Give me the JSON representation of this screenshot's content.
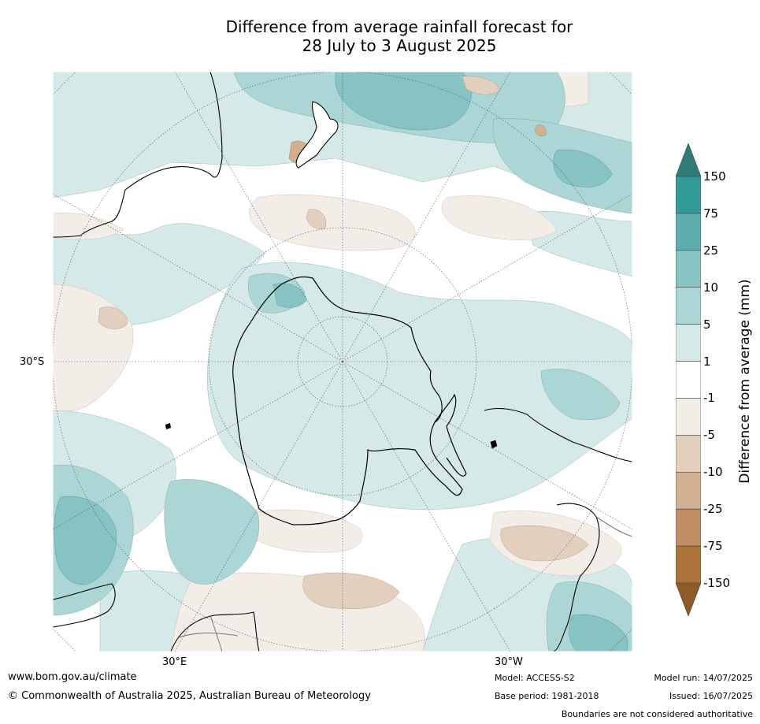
{
  "title": {
    "line1": "Difference from average rainfall forecast for",
    "line2": "28 July to 3 August 2025"
  },
  "map": {
    "projection": "south-polar-stereographic",
    "labels": {
      "lat": "30°S",
      "lon_east": "30°E",
      "lon_west": "30°W"
    },
    "colors": {
      "land_outline": "#000000",
      "boundaries": "#777777",
      "graticule": "#555555"
    }
  },
  "colorbar": {
    "label": "Difference from average (mm)",
    "ticks": [
      "150",
      "75",
      "25",
      "10",
      "5",
      "1",
      "-1",
      "-5",
      "-10",
      "-25",
      "-75",
      "-150"
    ],
    "bins": [
      {
        "color": "#2f7c77",
        "range": "> 150",
        "type": "extend-top"
      },
      {
        "color": "#339b98",
        "range": "75 to 150"
      },
      {
        "color": "#5eaead",
        "range": "25 to 75"
      },
      {
        "color": "#87c3c2",
        "range": "10 to 25"
      },
      {
        "color": "#acd6d5",
        "range": "5 to 10"
      },
      {
        "color": "#d5e9e8",
        "range": "1 to 5"
      },
      {
        "color": "#ffffff",
        "range": "-1 to 1"
      },
      {
        "color": "#f3ede8",
        "range": "-5 to -1"
      },
      {
        "color": "#e3cfbd",
        "range": "-10 to -5"
      },
      {
        "color": "#d1b091",
        "range": "-25 to -10"
      },
      {
        "color": "#bf8f63",
        "range": "-75 to -25"
      },
      {
        "color": "#ac733b",
        "range": "-150 to -75"
      },
      {
        "color": "#8e5a26",
        "range": "< -150",
        "type": "extend-bottom"
      }
    ]
  },
  "footer": {
    "url": "www.bom.gov.au/climate",
    "copyright": "© Commonwealth of Australia 2025, Australian Bureau of Meteorology",
    "model": "Model: ACCESS-S2",
    "base_period": "Base period: 1981-2018",
    "model_run": "Model run: 14/07/2025",
    "issued": "Issued: 16/07/2025",
    "disclaimer": "Boundaries are not considered authoritative"
  }
}
